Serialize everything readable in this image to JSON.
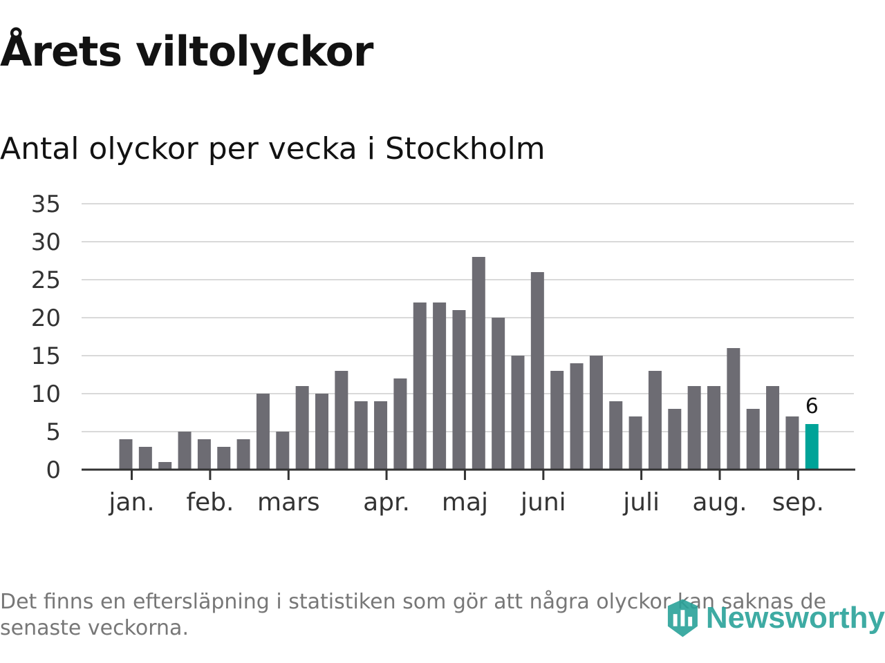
{
  "header": {
    "title": "Årets viltolyckor",
    "subtitle": "Antal olyckor per vecka i Stockholm"
  },
  "footer": {
    "note": "Det finns en eftersläpning i statistiken som gör att några olyckor kan saknas de senaste veckorna.",
    "logo_text": "Newsworthy"
  },
  "colors": {
    "bar": "#6d6c73",
    "highlight": "#00a398",
    "grid": "#d9d9d9",
    "axis": "#333333",
    "logo": "#2aa39a"
  },
  "chart_data": {
    "type": "bar",
    "title": "Årets viltolyckor",
    "subtitle": "Antal olyckor per vecka i Stockholm",
    "xlabel": "",
    "ylabel": "",
    "ylim": [
      0,
      35
    ],
    "yticks": [
      "0",
      "5",
      "10",
      "15",
      "20",
      "25",
      "30",
      "35"
    ],
    "values": [
      4,
      3,
      1,
      5,
      4,
      3,
      4,
      10,
      5,
      11,
      10,
      13,
      9,
      9,
      12,
      22,
      22,
      21,
      28,
      20,
      15,
      26,
      13,
      14,
      15,
      9,
      7,
      13,
      8,
      11,
      11,
      16,
      8,
      11,
      7,
      6
    ],
    "month_ticks": [
      {
        "label": "jan.",
        "index": 0.3
      },
      {
        "label": "feb.",
        "index": 4.3
      },
      {
        "label": "mars",
        "index": 8.3
      },
      {
        "label": "apr.",
        "index": 13.3
      },
      {
        "label": "maj",
        "index": 17.3
      },
      {
        "label": "juni",
        "index": 21.3
      },
      {
        "label": "juli",
        "index": 26.3
      },
      {
        "label": "aug.",
        "index": 30.3
      },
      {
        "label": "sep.",
        "index": 34.3
      }
    ],
    "highlight_index": 35,
    "highlight_label": "6",
    "grid": true,
    "legend": "none"
  }
}
